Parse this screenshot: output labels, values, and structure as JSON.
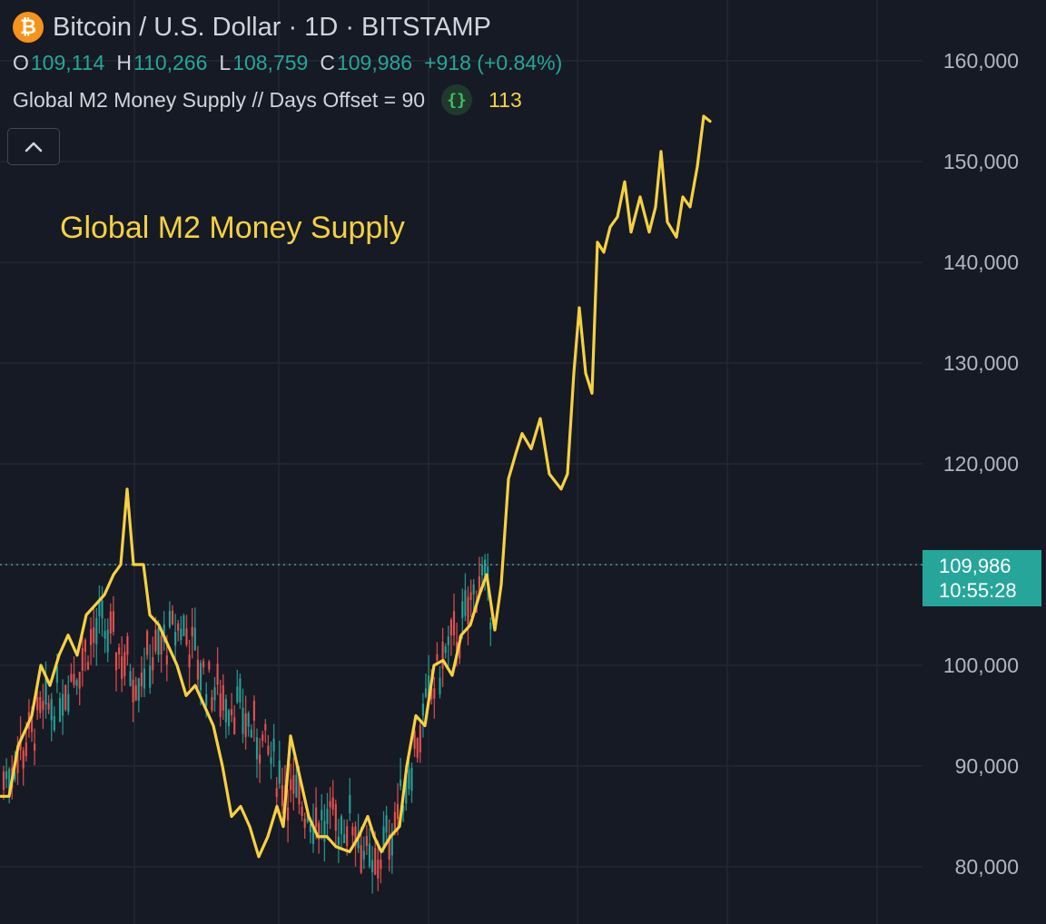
{
  "header": {
    "coin_icon_glyph": "₿",
    "title": "Bitcoin / U.S. Dollar · 1D · BITSTAMP",
    "ohlc": {
      "open_label": "O",
      "open": "109,114",
      "high_label": "H",
      "high": "110,266",
      "low_label": "L",
      "low": "108,759",
      "close_label": "C",
      "close": "109,986",
      "change": "+918 (+0.84%)"
    },
    "indicator": {
      "name": "Global M2 Money Supply // Days Offset = 90",
      "source_icon": "{}",
      "value": "113"
    }
  },
  "annotation": "Global M2 Money Supply",
  "price_tag": {
    "price": "109,986",
    "countdown": "10:55:28"
  },
  "colors": {
    "background": "#161a25",
    "grid": "#232734",
    "up_candle": "#26a69a",
    "down_candle": "#ef5350",
    "m2_line": "#f5d142",
    "axis_text": "#b2b5be"
  },
  "chart_data": {
    "type": "line",
    "ylim": [
      76000,
      165000
    ],
    "y_ticks": [
      "160,000",
      "150,000",
      "140,000",
      "130,000",
      "120,000",
      "110,000",
      "100,000",
      "90,000",
      "80,000"
    ],
    "y_tick_values": [
      160000,
      150000,
      140000,
      130000,
      120000,
      110000,
      100000,
      90000,
      80000
    ],
    "last_price": 109986,
    "series": [
      {
        "name": "Global M2 Money Supply",
        "points": [
          [
            0,
            87000
          ],
          [
            10,
            87000
          ],
          [
            20,
            92000
          ],
          [
            35,
            95000
          ],
          [
            45,
            100000
          ],
          [
            55,
            98000
          ],
          [
            65,
            101000
          ],
          [
            75,
            103000
          ],
          [
            85,
            101000
          ],
          [
            95,
            105000
          ],
          [
            105,
            106000
          ],
          [
            115,
            107000
          ],
          [
            125,
            109000
          ],
          [
            133,
            110000
          ],
          [
            140,
            117500
          ],
          [
            147,
            110000
          ],
          [
            158,
            110000
          ],
          [
            165,
            105000
          ],
          [
            175,
            104000
          ],
          [
            185,
            102000
          ],
          [
            195,
            100000
          ],
          [
            205,
            97000
          ],
          [
            215,
            98000
          ],
          [
            225,
            96000
          ],
          [
            235,
            94000
          ],
          [
            245,
            90000
          ],
          [
            255,
            85000
          ],
          [
            265,
            86000
          ],
          [
            275,
            84000
          ],
          [
            285,
            81000
          ],
          [
            295,
            83000
          ],
          [
            305,
            86000
          ],
          [
            312,
            84000
          ],
          [
            320,
            93000
          ],
          [
            330,
            89000
          ],
          [
            340,
            85000
          ],
          [
            350,
            83000
          ],
          [
            360,
            83000
          ],
          [
            370,
            82000
          ],
          [
            385,
            81500
          ],
          [
            395,
            83000
          ],
          [
            405,
            85000
          ],
          [
            412,
            83000
          ],
          [
            420,
            81500
          ],
          [
            430,
            83000
          ],
          [
            440,
            84000
          ],
          [
            448,
            90000
          ],
          [
            458,
            95000
          ],
          [
            468,
            94000
          ],
          [
            478,
            100000
          ],
          [
            488,
            100500
          ],
          [
            498,
            99000
          ],
          [
            508,
            103000
          ],
          [
            518,
            104000
          ],
          [
            528,
            107000
          ],
          [
            536,
            109000
          ],
          [
            545,
            103500
          ],
          [
            552,
            108000
          ],
          [
            560,
            118500
          ],
          [
            568,
            121000
          ],
          [
            575,
            123000
          ],
          [
            585,
            121500
          ],
          [
            595,
            124500
          ],
          [
            605,
            119000
          ],
          [
            618,
            117500
          ],
          [
            625,
            119000
          ],
          [
            632,
            129000
          ],
          [
            638,
            135500
          ],
          [
            645,
            129000
          ],
          [
            652,
            127000
          ],
          [
            658,
            142000
          ],
          [
            665,
            141000
          ],
          [
            672,
            143500
          ],
          [
            680,
            144500
          ],
          [
            688,
            148000
          ],
          [
            695,
            143000
          ],
          [
            705,
            146500
          ],
          [
            715,
            143000
          ],
          [
            722,
            145500
          ],
          [
            728,
            151000
          ],
          [
            735,
            144000
          ],
          [
            745,
            142500
          ],
          [
            752,
            146500
          ],
          [
            760,
            145500
          ],
          [
            768,
            149500
          ],
          [
            775,
            154500
          ],
          [
            782,
            154000
          ]
        ]
      }
    ]
  }
}
